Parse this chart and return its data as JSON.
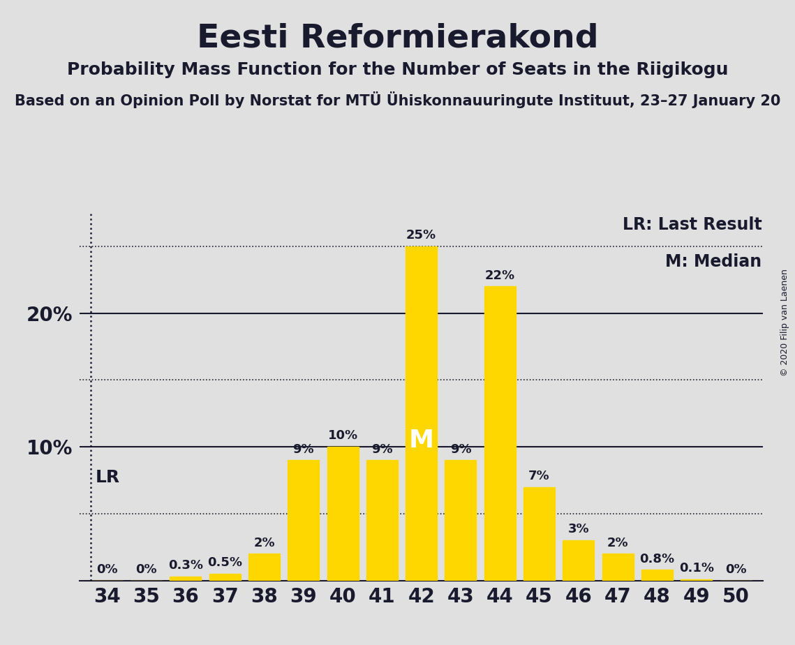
{
  "title": "Eesti Reformierakond",
  "subtitle": "Probability Mass Function for the Number of Seats in the Riigikogu",
  "subsubtitle": "Based on an Opinion Poll by Norstat for MTÜ Ühiskonnauuringute Instituut, 23–27 January 20",
  "copyright": "© 2020 Filip van Laenen",
  "seats": [
    34,
    35,
    36,
    37,
    38,
    39,
    40,
    41,
    42,
    43,
    44,
    45,
    46,
    47,
    48,
    49,
    50
  ],
  "probabilities": [
    0.0,
    0.0,
    0.3,
    0.5,
    2.0,
    9.0,
    10.0,
    9.0,
    25.0,
    9.0,
    22.0,
    7.0,
    3.0,
    2.0,
    0.8,
    0.1,
    0.0
  ],
  "bar_color": "#FFD700",
  "background_color": "#E0E0E0",
  "text_color": "#1a1a2e",
  "LR_seat": 34,
  "median_seat": 42,
  "solid_hlines": [
    10.0,
    20.0
  ],
  "dotted_hlines": [
    5.0,
    15.0,
    25.0
  ],
  "ylim": [
    0,
    27.5
  ],
  "title_fontsize": 34,
  "subtitle_fontsize": 18,
  "subsubtitle_fontsize": 15,
  "bar_label_fontsize": 13,
  "axis_tick_fontsize": 20,
  "legend_fontsize": 17,
  "lr_label_fontsize": 18,
  "median_label_fontsize": 26,
  "copyright_fontsize": 9
}
